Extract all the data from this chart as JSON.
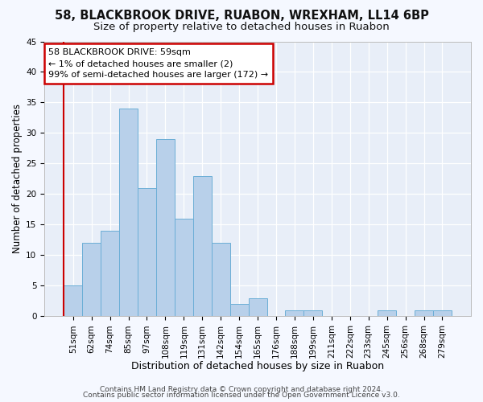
{
  "title1": "58, BLACKBROOK DRIVE, RUABON, WREXHAM, LL14 6BP",
  "title2": "Size of property relative to detached houses in Ruabon",
  "xlabel": "Distribution of detached houses by size in Ruabon",
  "ylabel": "Number of detached properties",
  "bar_labels": [
    "51sqm",
    "62sqm",
    "74sqm",
    "85sqm",
    "97sqm",
    "108sqm",
    "119sqm",
    "131sqm",
    "142sqm",
    "154sqm",
    "165sqm",
    "176sqm",
    "188sqm",
    "199sqm",
    "211sqm",
    "222sqm",
    "233sqm",
    "245sqm",
    "256sqm",
    "268sqm",
    "279sqm"
  ],
  "bar_values": [
    5,
    12,
    14,
    34,
    21,
    29,
    16,
    23,
    12,
    2,
    3,
    0,
    1,
    1,
    0,
    0,
    0,
    1,
    0,
    1,
    1
  ],
  "bar_color": "#b8d0ea",
  "bar_edge_color": "#6baed6",
  "ylim": [
    0,
    45
  ],
  "yticks": [
    0,
    5,
    10,
    15,
    20,
    25,
    30,
    35,
    40,
    45
  ],
  "annotation_line1": "58 BLACKBROOK DRIVE: 59sqm",
  "annotation_line2": "← 1% of detached houses are smaller (2)",
  "annotation_line3": "99% of semi-detached houses are larger (172) →",
  "annotation_box_color": "#ffffff",
  "annotation_box_edge_color": "#cc0000",
  "vline_color": "#cc0000",
  "footer1": "Contains HM Land Registry data © Crown copyright and database right 2024.",
  "footer2": "Contains public sector information licensed under the Open Government Licence v3.0.",
  "bg_color": "#f5f8ff",
  "plot_bg_color": "#e8eef8",
  "grid_color": "#ffffff",
  "title1_fontsize": 10.5,
  "title2_fontsize": 9.5,
  "xlabel_fontsize": 9,
  "ylabel_fontsize": 8.5,
  "tick_fontsize": 7.5,
  "annot_fontsize": 8,
  "footer_fontsize": 6.5
}
